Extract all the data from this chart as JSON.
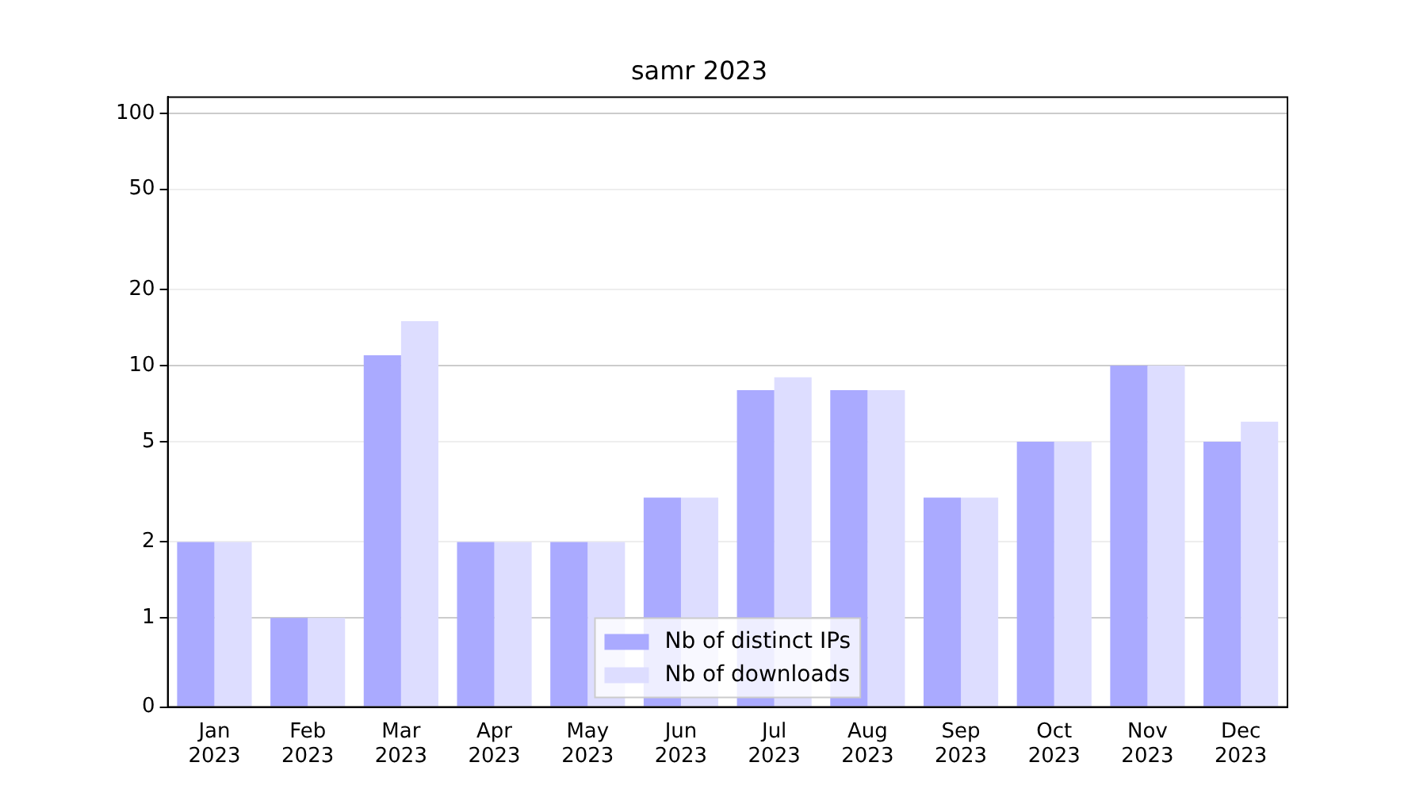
{
  "chart_data": {
    "type": "bar",
    "title": "samr 2023",
    "categories": [
      "Jan 2023",
      "Feb 2023",
      "Mar 2023",
      "Apr 2023",
      "May 2023",
      "Jun 2023",
      "Jul 2023",
      "Aug 2023",
      "Sep 2023",
      "Oct 2023",
      "Nov 2023",
      "Dec 2023"
    ],
    "series": [
      {
        "name": "Nb of distinct IPs",
        "color": "#aaaaff",
        "values": [
          2,
          1,
          11,
          2,
          2,
          3,
          8,
          8,
          3,
          5,
          10,
          5
        ]
      },
      {
        "name": "Nb of downloads",
        "color": "#ddddff",
        "values": [
          2,
          1,
          15,
          2,
          2,
          3,
          9,
          8,
          3,
          5,
          10,
          6
        ]
      }
    ],
    "log": "y",
    "ylim": [
      0,
      116
    ],
    "yticks": [
      0,
      1,
      2,
      5,
      10,
      20,
      50,
      100
    ],
    "grid": "y",
    "legend": "bottom"
  }
}
